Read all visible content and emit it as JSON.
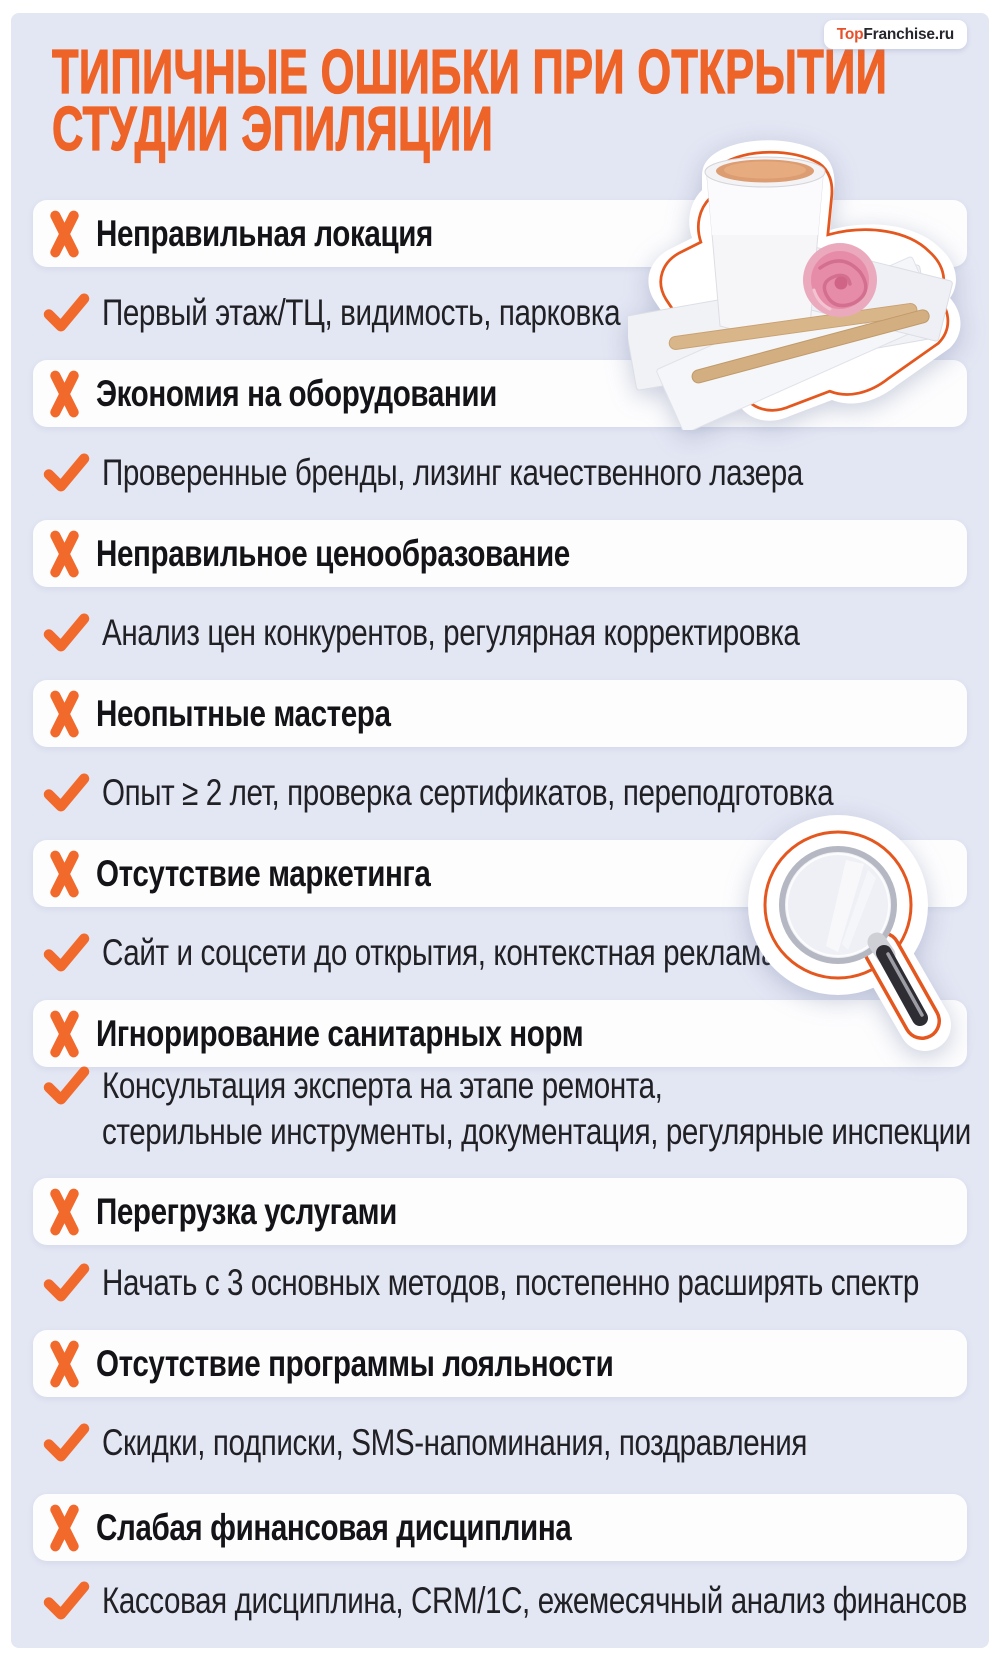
{
  "page": {
    "title_line1": "ТИПИЧНЫЕ ОШИБКИ ПРИ ОТКРЫТИИ",
    "title_line2": "СТУДИИ ЭПИЛЯЦИИ"
  },
  "logo": {
    "part1": "Top",
    "part2": "Franchise.ru"
  },
  "colors": {
    "accent_orange": "#ee6327",
    "icon_orange": "#f2692c",
    "background_lavender": "#e3e6f3",
    "card_white": "#ffffff",
    "text_dark": "#141418"
  },
  "icons": {
    "mistake_icon": "x-mark-icon",
    "tip_icon": "check-icon"
  },
  "stickers": [
    {
      "name": "wax-jar-strips-rose-sticker"
    },
    {
      "name": "magnifying-glass-sticker"
    }
  ],
  "rows": [
    {
      "type": "mistake",
      "lines": [
        "Неправильная локация"
      ]
    },
    {
      "type": "tip",
      "lines": [
        "Первый этаж/ТЦ, видимость, парковка"
      ]
    },
    {
      "type": "mistake",
      "lines": [
        "Экономия на оборудовании"
      ]
    },
    {
      "type": "tip",
      "lines": [
        "Проверенные бренды, лизинг качественного лазера"
      ]
    },
    {
      "type": "mistake",
      "lines": [
        "Неправильное ценообразование"
      ]
    },
    {
      "type": "tip",
      "lines": [
        "Анализ цен конкурентов, регулярная корректировка"
      ]
    },
    {
      "type": "mistake",
      "lines": [
        "Неопытные мастера"
      ]
    },
    {
      "type": "tip",
      "lines": [
        "Опыт ≥ 2 лет, проверка сертификатов, переподготовка"
      ]
    },
    {
      "type": "mistake",
      "lines": [
        "Отсутствие маркетинга"
      ]
    },
    {
      "type": "tip",
      "lines": [
        "Сайт и соцсети до открытия, контекстная реклама"
      ]
    },
    {
      "type": "mistake",
      "lines": [
        "Игнорирование санитарных норм"
      ]
    },
    {
      "type": "tip",
      "lines": [
        "Консультация эксперта на этапе ремонта,",
        "стерильные инструменты, документация, регулярные инспекции"
      ]
    },
    {
      "type": "mistake",
      "lines": [
        "Перегрузка услугами"
      ]
    },
    {
      "type": "tip",
      "lines": [
        "Начать с 3 основных методов, постепенно расширять спектр"
      ]
    },
    {
      "type": "mistake",
      "lines": [
        "Отсутствие программы лояльности"
      ]
    },
    {
      "type": "tip",
      "lines": [
        "Скидки, подписки, SMS-напоминания, поздравления"
      ]
    },
    {
      "type": "mistake",
      "lines": [
        "Слабая финансовая дисциплина"
      ]
    },
    {
      "type": "tip",
      "lines": [
        "Кассовая дисциплина, CRM/1С, ежемесячный анализ финансов"
      ]
    }
  ]
}
